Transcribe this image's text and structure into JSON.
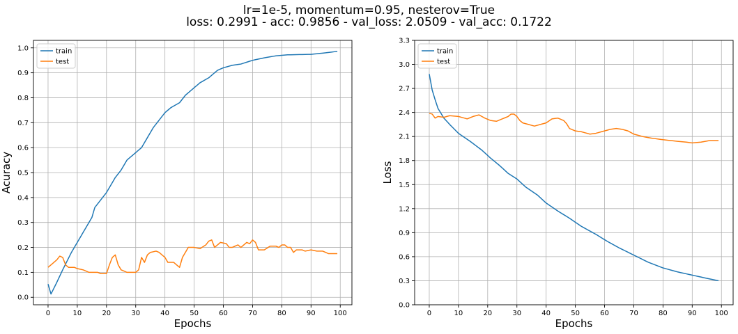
{
  "figure": {
    "title_line1": "lr=1e-5, momentum=0.95, nesterov=True",
    "title_line2": "loss: 0.2991 - acc: 0.9856 - val_loss: 2.0509 - val_acc: 0.1722"
  },
  "colors": {
    "train": "#1f77b4",
    "test": "#ff7f0e",
    "grid": "#b0b0b0"
  },
  "chart_data": [
    {
      "type": "line",
      "xlabel": "Epochs",
      "ylabel": "Acuracy",
      "xlim": [
        -5,
        104
      ],
      "ylim": [
        -0.03,
        1.03
      ],
      "xticks": [
        0,
        10,
        20,
        30,
        40,
        50,
        60,
        70,
        80,
        90,
        100
      ],
      "yticks": [
        0.0,
        0.1,
        0.2,
        0.3,
        0.4,
        0.5,
        0.6,
        0.7,
        0.8,
        0.9,
        1.0
      ],
      "ytick_decimals": 1,
      "grid": true,
      "legend_position": "top-left",
      "series": [
        {
          "name": "train",
          "keypoints": [
            [
              0,
              0.053
            ],
            [
              1,
              0.013
            ],
            [
              3,
              0.06
            ],
            [
              5,
              0.11
            ],
            [
              8,
              0.18
            ],
            [
              10,
              0.22
            ],
            [
              13,
              0.28
            ],
            [
              15,
              0.32
            ],
            [
              16,
              0.36
            ],
            [
              18,
              0.39
            ],
            [
              20,
              0.42
            ],
            [
              22,
              0.46
            ],
            [
              23,
              0.48
            ],
            [
              25,
              0.51
            ],
            [
              27,
              0.55
            ],
            [
              29,
              0.57
            ],
            [
              30,
              0.58
            ],
            [
              32,
              0.6
            ],
            [
              34,
              0.64
            ],
            [
              36,
              0.68
            ],
            [
              38,
              0.71
            ],
            [
              40,
              0.74
            ],
            [
              42,
              0.76
            ],
            [
              45,
              0.78
            ],
            [
              47,
              0.81
            ],
            [
              50,
              0.84
            ],
            [
              52,
              0.86
            ],
            [
              55,
              0.88
            ],
            [
              58,
              0.91
            ],
            [
              60,
              0.92
            ],
            [
              63,
              0.93
            ],
            [
              66,
              0.935
            ],
            [
              70,
              0.95
            ],
            [
              74,
              0.96
            ],
            [
              78,
              0.968
            ],
            [
              82,
              0.972
            ],
            [
              90,
              0.974
            ],
            [
              95,
              0.98
            ],
            [
              99,
              0.986
            ]
          ]
        },
        {
          "name": "test",
          "keypoints": [
            [
              0,
              0.12
            ],
            [
              1,
              0.13
            ],
            [
              2,
              0.14
            ],
            [
              3,
              0.15
            ],
            [
              4,
              0.165
            ],
            [
              5,
              0.16
            ],
            [
              6,
              0.13
            ],
            [
              7,
              0.12
            ],
            [
              9,
              0.12
            ],
            [
              10,
              0.115
            ],
            [
              12,
              0.11
            ],
            [
              14,
              0.1
            ],
            [
              17,
              0.1
            ],
            [
              18,
              0.095
            ],
            [
              20,
              0.095
            ],
            [
              21,
              0.13
            ],
            [
              22,
              0.16
            ],
            [
              23,
              0.17
            ],
            [
              24,
              0.13
            ],
            [
              25,
              0.11
            ],
            [
              27,
              0.1
            ],
            [
              30,
              0.1
            ],
            [
              31,
              0.11
            ],
            [
              32,
              0.16
            ],
            [
              33,
              0.14
            ],
            [
              34,
              0.17
            ],
            [
              35,
              0.18
            ],
            [
              37,
              0.185
            ],
            [
              38,
              0.18
            ],
            [
              40,
              0.16
            ],
            [
              41,
              0.14
            ],
            [
              43,
              0.14
            ],
            [
              44,
              0.13
            ],
            [
              45,
              0.12
            ],
            [
              46,
              0.16
            ],
            [
              48,
              0.2
            ],
            [
              50,
              0.2
            ],
            [
              52,
              0.195
            ],
            [
              54,
              0.21
            ],
            [
              55,
              0.225
            ],
            [
              56,
              0.23
            ],
            [
              57,
              0.2
            ],
            [
              58,
              0.21
            ],
            [
              59,
              0.22
            ],
            [
              61,
              0.215
            ],
            [
              62,
              0.2
            ],
            [
              63,
              0.2
            ],
            [
              65,
              0.21
            ],
            [
              66,
              0.2
            ],
            [
              68,
              0.22
            ],
            [
              69,
              0.215
            ],
            [
              70,
              0.23
            ],
            [
              71,
              0.22
            ],
            [
              72,
              0.19
            ],
            [
              74,
              0.19
            ],
            [
              76,
              0.205
            ],
            [
              78,
              0.205
            ],
            [
              79,
              0.2
            ],
            [
              80,
              0.21
            ],
            [
              81,
              0.21
            ],
            [
              82,
              0.2
            ],
            [
              83,
              0.2
            ],
            [
              84,
              0.18
            ],
            [
              85,
              0.19
            ],
            [
              87,
              0.19
            ],
            [
              88,
              0.185
            ],
            [
              90,
              0.19
            ],
            [
              92,
              0.185
            ],
            [
              94,
              0.185
            ],
            [
              96,
              0.175
            ],
            [
              99,
              0.175
            ]
          ]
        }
      ]
    },
    {
      "type": "line",
      "xlabel": "Epochs",
      "ylabel": "Loss",
      "xlim": [
        -5,
        104
      ],
      "ylim": [
        0.0,
        3.3
      ],
      "xticks": [
        0,
        10,
        20,
        30,
        40,
        50,
        60,
        70,
        80,
        90,
        100
      ],
      "yticks": [
        0.0,
        0.3,
        0.6,
        0.9,
        1.2,
        1.5,
        1.8,
        2.1,
        2.4,
        2.7,
        3.0,
        3.3
      ],
      "ytick_decimals": 1,
      "grid": true,
      "legend_position": "top-left",
      "series": [
        {
          "name": "train",
          "keypoints": [
            [
              0,
              2.88
            ],
            [
              1,
              2.68
            ],
            [
              2,
              2.56
            ],
            [
              3,
              2.45
            ],
            [
              5,
              2.33
            ],
            [
              7,
              2.25
            ],
            [
              10,
              2.14
            ],
            [
              14,
              2.04
            ],
            [
              18,
              1.93
            ],
            [
              21,
              1.83
            ],
            [
              24,
              1.74
            ],
            [
              27,
              1.64
            ],
            [
              30,
              1.57
            ],
            [
              33,
              1.47
            ],
            [
              37,
              1.37
            ],
            [
              40,
              1.27
            ],
            [
              44,
              1.17
            ],
            [
              48,
              1.08
            ],
            [
              52,
              0.98
            ],
            [
              57,
              0.88
            ],
            [
              61,
              0.79
            ],
            [
              65,
              0.71
            ],
            [
              70,
              0.62
            ],
            [
              75,
              0.53
            ],
            [
              80,
              0.46
            ],
            [
              85,
              0.41
            ],
            [
              90,
              0.37
            ],
            [
              95,
              0.33
            ],
            [
              99,
              0.3
            ]
          ]
        },
        {
          "name": "test",
          "keypoints": [
            [
              0,
              2.39
            ],
            [
              1,
              2.38
            ],
            [
              2,
              2.33
            ],
            [
              3,
              2.35
            ],
            [
              5,
              2.34
            ],
            [
              7,
              2.36
            ],
            [
              10,
              2.35
            ],
            [
              13,
              2.32
            ],
            [
              15,
              2.35
            ],
            [
              17,
              2.37
            ],
            [
              19,
              2.33
            ],
            [
              21,
              2.3
            ],
            [
              23,
              2.29
            ],
            [
              25,
              2.32
            ],
            [
              27,
              2.35
            ],
            [
              28,
              2.38
            ],
            [
              29,
              2.38
            ],
            [
              30,
              2.35
            ],
            [
              31,
              2.3
            ],
            [
              32,
              2.27
            ],
            [
              34,
              2.25
            ],
            [
              36,
              2.23
            ],
            [
              38,
              2.25
            ],
            [
              40,
              2.27
            ],
            [
              42,
              2.32
            ],
            [
              44,
              2.33
            ],
            [
              46,
              2.3
            ],
            [
              47,
              2.26
            ],
            [
              48,
              2.2
            ],
            [
              50,
              2.17
            ],
            [
              52,
              2.16
            ],
            [
              55,
              2.13
            ],
            [
              57,
              2.14
            ],
            [
              60,
              2.17
            ],
            [
              62,
              2.19
            ],
            [
              64,
              2.2
            ],
            [
              66,
              2.19
            ],
            [
              68,
              2.17
            ],
            [
              70,
              2.13
            ],
            [
              73,
              2.1
            ],
            [
              76,
              2.08
            ],
            [
              80,
              2.06
            ],
            [
              85,
              2.04
            ],
            [
              88,
              2.03
            ],
            [
              90,
              2.02
            ],
            [
              93,
              2.03
            ],
            [
              96,
              2.05
            ],
            [
              99,
              2.05
            ]
          ]
        }
      ]
    }
  ]
}
